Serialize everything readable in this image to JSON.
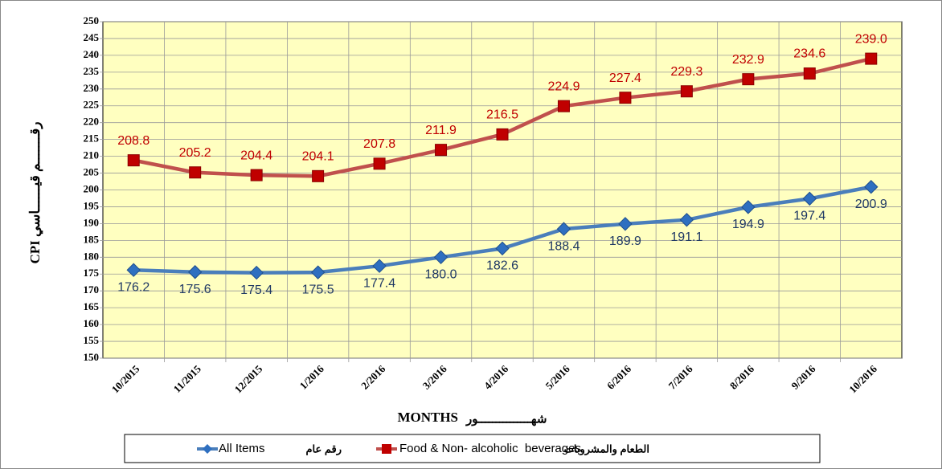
{
  "chart_data": {
    "type": "line",
    "ylabel": "CPI رقـــــــم قيــــــاسي",
    "xlabel": "MONTHS",
    "xlabel_ar": "شهـــــــــــــــور",
    "categories": [
      "10/2015",
      "11/2015",
      "12/2015",
      "1/2016",
      "2/2016",
      "3/2016",
      "4/2016",
      "5/2016",
      "6/2016",
      "7/2016",
      "8/2016",
      "9/2016",
      "10/2016"
    ],
    "series": [
      {
        "name": "All Items",
        "name_ar": "رقم عام",
        "color": "#4a7ebb",
        "marker_color": "#2e6fc0",
        "values": [
          176.2,
          175.6,
          175.4,
          175.5,
          177.4,
          180.0,
          182.6,
          188.4,
          189.9,
          191.1,
          194.9,
          197.4,
          200.9
        ],
        "value_labels": [
          "176.2",
          "175.6",
          "175.4",
          "175.5",
          "177.4",
          "180.0",
          "182.6",
          "188.4",
          "189.9",
          "191.1",
          "194.9",
          "197.4",
          "200.9"
        ],
        "label_color": "#1f3864"
      },
      {
        "name": "Food & Non- alcoholic  beverages",
        "name_ar": "الطعام والمشروبات",
        "color": "#c0504d",
        "marker_color": "#c00000",
        "values": [
          208.8,
          205.2,
          204.4,
          204.1,
          207.8,
          211.9,
          216.5,
          224.9,
          227.4,
          229.3,
          232.9,
          234.6,
          239.0
        ],
        "value_labels": [
          "208.8",
          "205.2",
          "204.4",
          "204.1",
          "207.8",
          "211.9",
          "216.5",
          "224.9",
          "227.4",
          "229.3",
          "232.9",
          "234.6",
          "239.0"
        ],
        "label_color": "#c00000"
      }
    ],
    "ylim": [
      150,
      250
    ],
    "yticks": [
      150,
      155,
      160,
      165,
      170,
      175,
      180,
      185,
      190,
      195,
      200,
      205,
      210,
      215,
      220,
      225,
      230,
      235,
      240,
      245,
      250
    ],
    "grid": true,
    "legend": "bottom",
    "plot_background": "#ffffc0"
  }
}
